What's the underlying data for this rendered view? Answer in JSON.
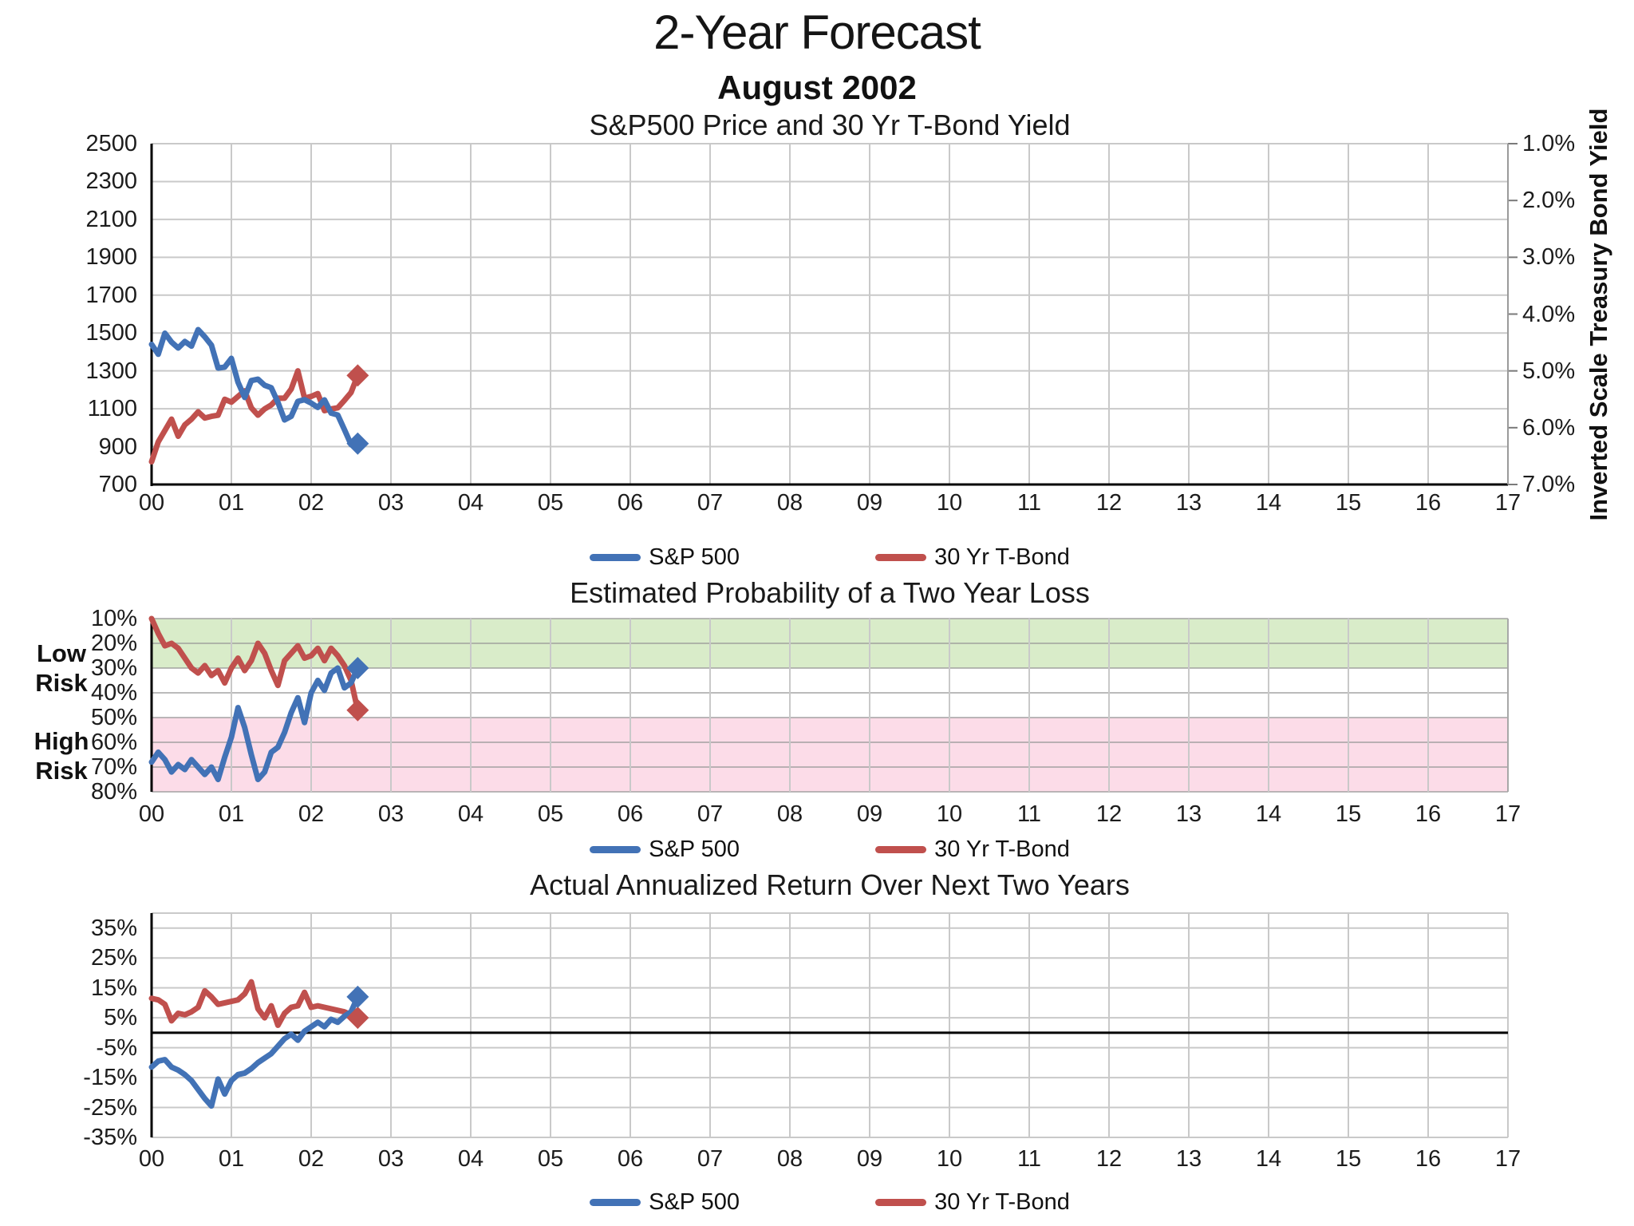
{
  "header": {
    "title": "2-Year Forecast",
    "subtitle": "August 2002"
  },
  "colors": {
    "sp500": "#4272b6",
    "tbond": "#c0504d",
    "band_green": "#d9ecc9",
    "band_pink": "#fcdce8",
    "grid": "#c9c9c9",
    "axis": "#000000"
  },
  "chart_data": [
    {
      "id": "price_yield",
      "type": "line",
      "title": "S&P500 Price and 30 Yr T-Bond Yield",
      "x_axis": {
        "start": "2000-01",
        "step": "month",
        "range_years": [
          2000,
          2017
        ],
        "tick_labels": [
          "00",
          "01",
          "02",
          "03",
          "04",
          "05",
          "06",
          "07",
          "08",
          "09",
          "10",
          "11",
          "12",
          "13",
          "14",
          "15",
          "16",
          "17"
        ]
      },
      "left_axis": {
        "range": [
          700,
          2500
        ],
        "tick_labels": [
          "2500",
          "2300",
          "2100",
          "1900",
          "1700",
          "1500",
          "1300",
          "1100",
          "900",
          "700"
        ]
      },
      "right_axis": {
        "label": "Inverted Scale Treasury Bond Yield",
        "range": [
          1,
          7
        ],
        "inverted": true,
        "tick_labels": [
          "1.0%",
          "2.0%",
          "3.0%",
          "4.0%",
          "5.0%",
          "6.0%",
          "7.0%"
        ]
      },
      "series": [
        {
          "name": "S&P 500",
          "axis": "left",
          "color_key": "sp500",
          "end_marker": "diamond",
          "values": [
            1440,
            1388,
            1499,
            1452,
            1421,
            1455,
            1431,
            1518,
            1480,
            1436,
            1315,
            1320,
            1366,
            1240,
            1160,
            1249,
            1256,
            1224,
            1211,
            1134,
            1041,
            1060,
            1139,
            1148,
            1130,
            1107,
            1147,
            1077,
            1067,
            990,
            911,
            916
          ]
        },
        {
          "name": "30 Yr T-Bond",
          "axis": "right",
          "color_key": "tbond",
          "end_marker": "diamond",
          "values": [
            6.6,
            6.25,
            6.05,
            5.85,
            6.15,
            5.95,
            5.85,
            5.72,
            5.83,
            5.8,
            5.78,
            5.5,
            5.55,
            5.45,
            5.35,
            5.65,
            5.78,
            5.67,
            5.6,
            5.48,
            5.48,
            5.32,
            5.0,
            5.48,
            5.45,
            5.4,
            5.7,
            5.67,
            5.65,
            5.52,
            5.38,
            5.08
          ]
        }
      ]
    },
    {
      "id": "loss_probability",
      "type": "line",
      "title": "Estimated Probability of a Two Year Loss",
      "x_axis": {
        "start": "2000-01",
        "step": "month",
        "range_years": [
          2000,
          2017
        ],
        "tick_labels": [
          "00",
          "01",
          "02",
          "03",
          "04",
          "05",
          "06",
          "07",
          "08",
          "09",
          "10",
          "11",
          "12",
          "13",
          "14",
          "15",
          "16",
          "17"
        ]
      },
      "y_axis": {
        "range": [
          10,
          80
        ],
        "inverted": true,
        "unit": "%",
        "tick_labels": [
          "10%",
          "20%",
          "30%",
          "40%",
          "50%",
          "60%",
          "70%",
          "80%"
        ]
      },
      "bands": [
        {
          "label": "Low Risk",
          "from": 10,
          "to": 30,
          "color_key": "band_green"
        },
        {
          "label": "High Risk",
          "from": 50,
          "to": 80,
          "color_key": "band_pink"
        }
      ],
      "series": [
        {
          "name": "S&P 500",
          "color_key": "sp500",
          "end_marker": "diamond",
          "values": [
            68,
            64,
            67,
            72,
            69,
            71,
            67,
            70,
            73,
            70,
            75,
            66,
            58,
            46,
            54,
            65,
            75,
            72,
            64,
            62,
            56,
            48,
            42,
            52,
            40,
            35,
            39,
            32,
            30,
            38,
            36,
            30
          ]
        },
        {
          "name": "30 Yr T-Bond",
          "color_key": "tbond",
          "end_marker": "diamond",
          "values": [
            10,
            16,
            21,
            20,
            22,
            26,
            30,
            32,
            29,
            33,
            31,
            36,
            30,
            26,
            31,
            27,
            20,
            24,
            31,
            37,
            27,
            24,
            21,
            26,
            25,
            22,
            27,
            22,
            25,
            29,
            35,
            47
          ]
        }
      ]
    },
    {
      "id": "actual_return",
      "type": "line",
      "title": "Actual Annualized Return Over Next Two Years",
      "x_axis": {
        "start": "2000-01",
        "step": "month",
        "range_years": [
          2000,
          2017
        ],
        "tick_labels": [
          "00",
          "01",
          "02",
          "03",
          "04",
          "05",
          "06",
          "07",
          "08",
          "09",
          "10",
          "11",
          "12",
          "13",
          "14",
          "15",
          "16",
          "17"
        ]
      },
      "y_axis": {
        "range": [
          -35,
          35
        ],
        "unit": "%",
        "zero_line": true,
        "tick_labels": [
          "35%",
          "25%",
          "15%",
          "5%",
          "-5%",
          "-15%",
          "-25%",
          "-35%"
        ]
      },
      "series": [
        {
          "name": "S&P 500",
          "color_key": "sp500",
          "end_marker": "diamond",
          "values": [
            -11.5,
            -9.5,
            -9,
            -11.5,
            -12.5,
            -14,
            -16,
            -19,
            -22,
            -24.5,
            -15.5,
            -20.5,
            -16,
            -14,
            -13.5,
            -12,
            -10,
            -8.5,
            -7,
            -4.5,
            -2,
            -0.5,
            -2.5,
            0.5,
            2,
            3.5,
            2,
            4.5,
            3.5,
            5.5,
            7,
            12
          ]
        },
        {
          "name": "30 Yr T-Bond",
          "color_key": "tbond",
          "end_marker": "diamond",
          "values": [
            11.5,
            11,
            9.5,
            4,
            6.5,
            6,
            7,
            8.5,
            14,
            12,
            9.5,
            10,
            10.5,
            11,
            13,
            17,
            8,
            5,
            9,
            2.5,
            6.5,
            8.5,
            9,
            13.5,
            8.5,
            9,
            8.5,
            8,
            7.5,
            7,
            6,
            5
          ]
        }
      ]
    }
  ]
}
